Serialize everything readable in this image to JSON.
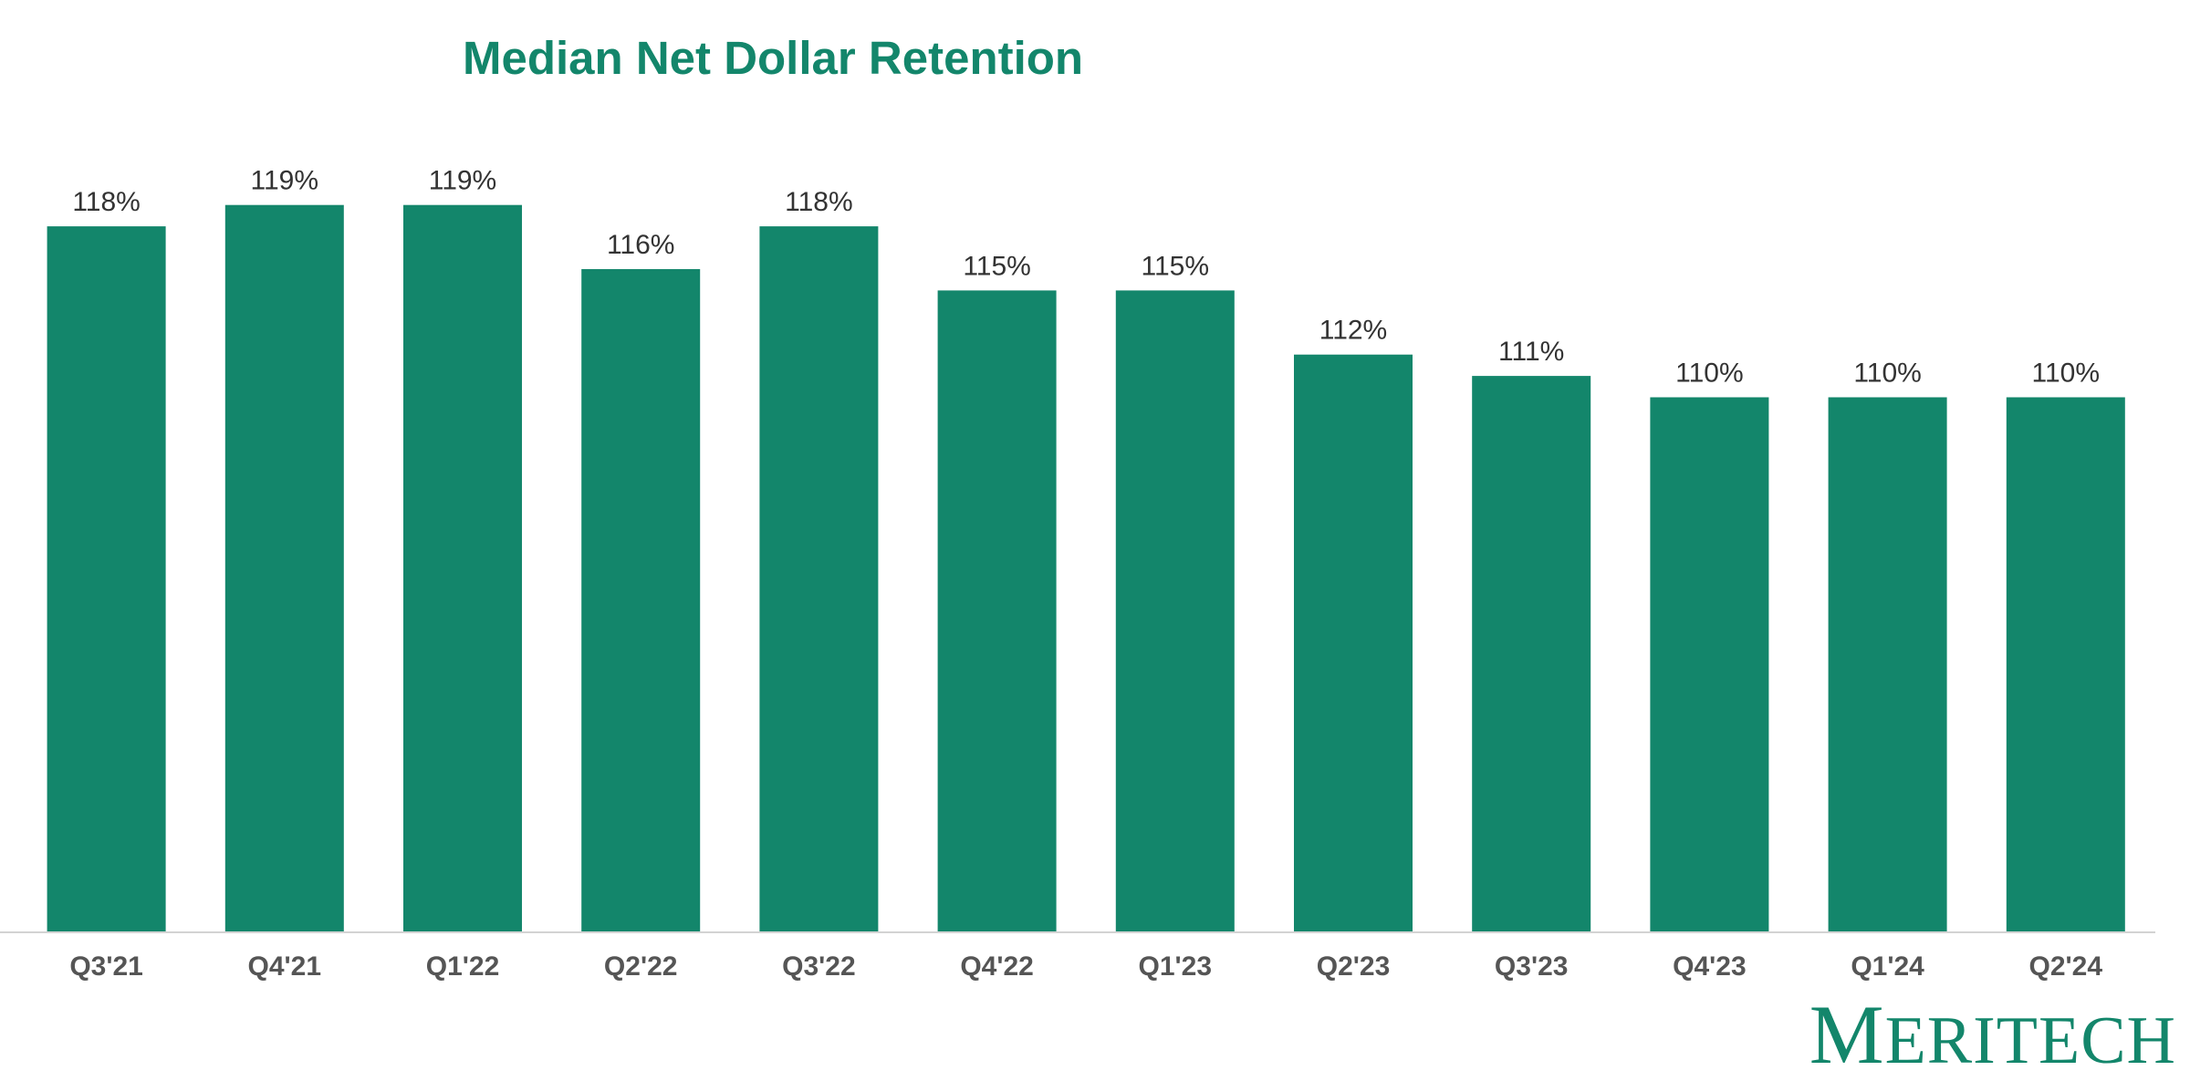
{
  "colors": {
    "bar": "#13866B",
    "title": "#13866B",
    "axis_line": "#D3D3D3",
    "logo": "#13866B"
  },
  "chart_data": {
    "type": "bar",
    "title": "Median Net Dollar Retention",
    "xlabel": "",
    "ylabel": "",
    "ylim": [
      85,
      119.5
    ],
    "grid": false,
    "legend": "none",
    "unit_suffix": "%",
    "categories": [
      "Q3'21",
      "Q4'21",
      "Q1'22",
      "Q2'22",
      "Q3'22",
      "Q4'22",
      "Q1'23",
      "Q2'23",
      "Q3'23",
      "Q4'23",
      "Q1'24",
      "Q2'24"
    ],
    "values": [
      118,
      119,
      119,
      116,
      118,
      115,
      115,
      112,
      111,
      110,
      110,
      110
    ],
    "data_labels": [
      "118%",
      "119%",
      "119%",
      "116%",
      "118%",
      "115%",
      "115%",
      "112%",
      "111%",
      "110%",
      "110%",
      "110%"
    ]
  },
  "brand": {
    "logo_text": "MERITECH",
    "logo_first": "M",
    "logo_rest": "ERITECH"
  }
}
